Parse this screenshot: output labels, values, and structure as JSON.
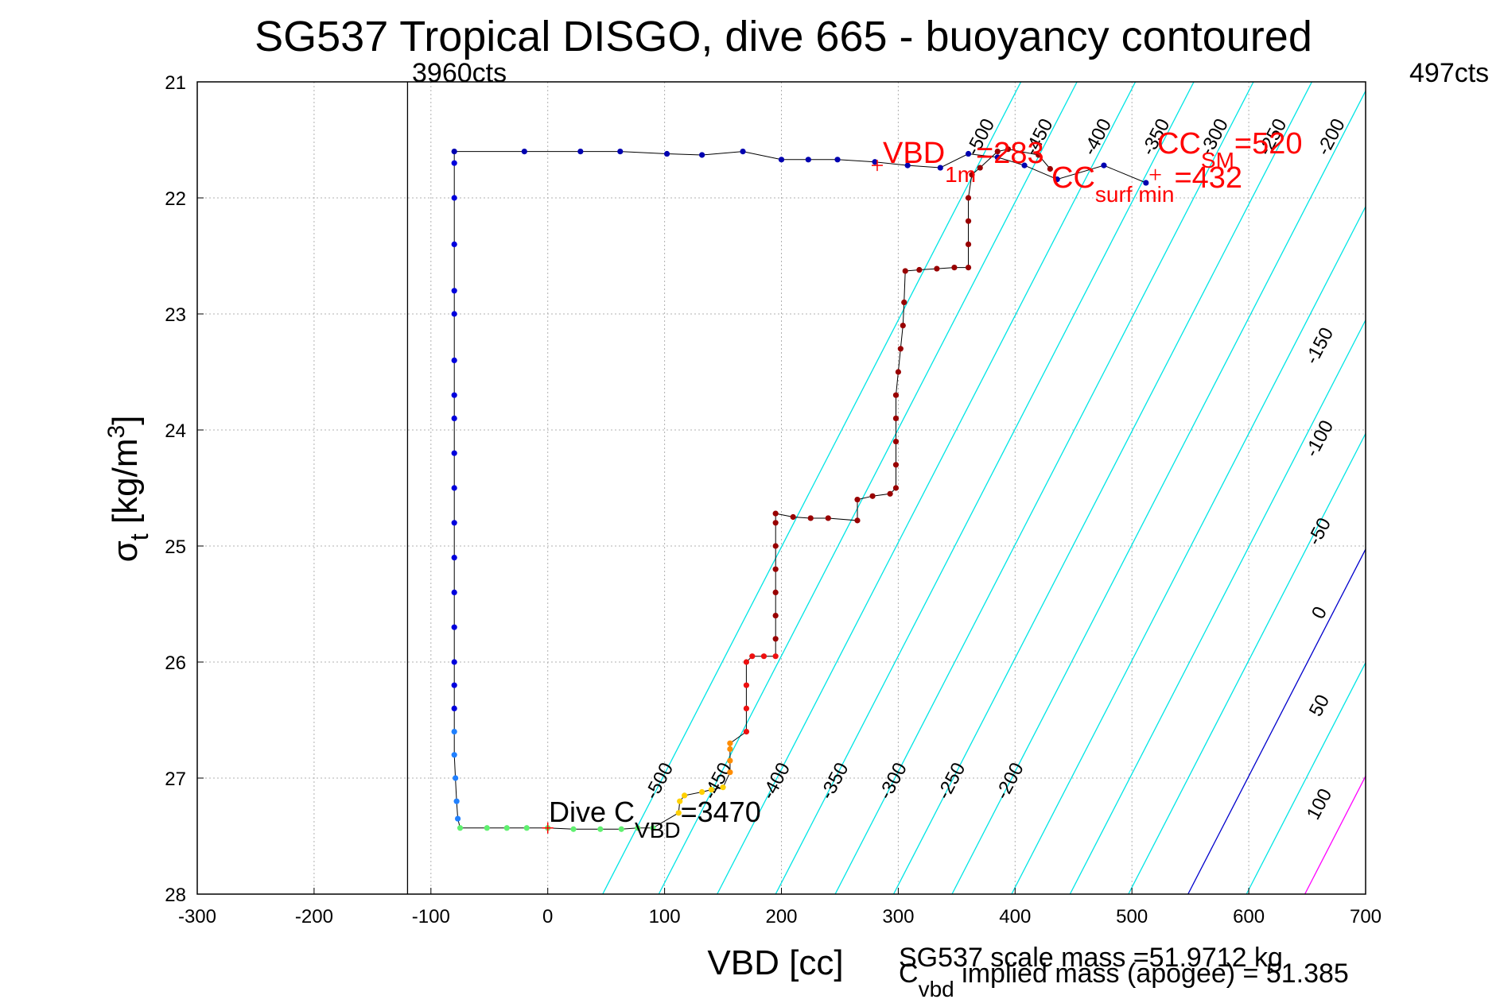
{
  "chart_data": {
    "type": "scatter",
    "title": "SG537 Tropical DISGO, dive 665 - buoyancy contoured",
    "xlabel": "VBD [cc]",
    "ylabel": {
      "base": "σ",
      "sub": "t",
      "rest": " [kg/m",
      "sup": "3",
      "end": "]"
    },
    "xlim": [
      -300,
      700
    ],
    "ylim": [
      21,
      28
    ],
    "y_reversed": true,
    "grid": true,
    "x_ticks": [
      -300,
      -200,
      -100,
      0,
      100,
      200,
      300,
      400,
      500,
      600,
      700
    ],
    "y_ticks": [
      21,
      22,
      23,
      24,
      25,
      26,
      27,
      28
    ],
    "counts_labels": [
      {
        "text": "3960cts",
        "x": -120
      },
      {
        "text": "497cts",
        "x": 700
      }
    ],
    "contours": [
      {
        "level": -500,
        "x_at_28": 47,
        "x_at_21": 405,
        "color": "#00e5e5",
        "label": "-500"
      },
      {
        "level": -450,
        "x_at_28": 95,
        "x_at_21": 453,
        "color": "#00e5e5",
        "label": "-450"
      },
      {
        "level": -400,
        "x_at_28": 145,
        "x_at_21": 503,
        "color": "#00e5e5",
        "label": "-400"
      },
      {
        "level": -350,
        "x_at_28": 195,
        "x_at_21": 553,
        "color": "#00e5e5",
        "label": "-350"
      },
      {
        "level": -300,
        "x_at_28": 246,
        "x_at_21": 604,
        "color": "#00e5e5",
        "label": "-300"
      },
      {
        "level": -250,
        "x_at_28": 296,
        "x_at_21": 654,
        "color": "#00e5e5",
        "label": "-250"
      },
      {
        "level": -200,
        "x_at_28": 346,
        "x_at_21": 704,
        "color": "#00e5e5",
        "label": "-200"
      },
      {
        "level": -150,
        "x_at_28": 397,
        "x_at_21": 755,
        "color": "#00e5e5",
        "label": "-150"
      },
      {
        "level": -100,
        "x_at_28": 447,
        "x_at_21": 805,
        "color": "#00e5e5",
        "label": "-100"
      },
      {
        "level": -50,
        "x_at_28": 497,
        "x_at_21": 855,
        "color": "#00e5e5",
        "label": "-50"
      },
      {
        "level": 0,
        "x_at_28": 548,
        "x_at_21": 906,
        "color": "#0000cc",
        "label": "0"
      },
      {
        "level": 50,
        "x_at_28": 598,
        "x_at_21": 956,
        "color": "#00e5e5",
        "label": "50"
      },
      {
        "level": 100,
        "x_at_28": 648,
        "x_at_21": 1006,
        "color": "#ff00ff",
        "label": "100"
      }
    ],
    "contour_labels": [
      {
        "text": "-500",
        "x": 100,
        "y": 27.05
      },
      {
        "text": "-450",
        "x": 150,
        "y": 27.05
      },
      {
        "text": "-400",
        "x": 200,
        "y": 27.05
      },
      {
        "text": "-350",
        "x": 250,
        "y": 27.05
      },
      {
        "text": "-300",
        "x": 300,
        "y": 27.05
      },
      {
        "text": "-250",
        "x": 350,
        "y": 27.05
      },
      {
        "text": "-200",
        "x": 400,
        "y": 27.05
      },
      {
        "text": "-500",
        "x": 375,
        "y": 21.5
      },
      {
        "text": "-450",
        "x": 425,
        "y": 21.5
      },
      {
        "text": "-400",
        "x": 475,
        "y": 21.5
      },
      {
        "text": "-350",
        "x": 525,
        "y": 21.5
      },
      {
        "text": "-300",
        "x": 575,
        "y": 21.5
      },
      {
        "text": "-250",
        "x": 625,
        "y": 21.5
      },
      {
        "text": "-200",
        "x": 675,
        "y": 21.5
      },
      {
        "text": "-150",
        "x": 665,
        "y": 23.3
      },
      {
        "text": "-100",
        "x": 665,
        "y": 24.1
      },
      {
        "text": "-50",
        "x": 665,
        "y": 24.9
      },
      {
        "text": "0",
        "x": 665,
        "y": 25.6
      },
      {
        "text": "50",
        "x": 665,
        "y": 26.4
      },
      {
        "text": "100",
        "x": 665,
        "y": 27.25
      }
    ],
    "series": [
      {
        "segment": "dive-top",
        "color": "#0000b0",
        "points": [
          [
            -80,
            21.6
          ],
          [
            -20,
            21.6
          ],
          [
            28,
            21.6
          ],
          [
            62,
            21.6
          ],
          [
            102,
            21.62
          ],
          [
            132,
            21.63
          ],
          [
            167,
            21.6
          ],
          [
            200,
            21.67
          ],
          [
            223,
            21.67
          ],
          [
            248,
            21.67
          ],
          [
            280,
            21.69
          ],
          [
            308,
            21.72
          ],
          [
            336,
            21.74
          ],
          [
            360,
            21.62
          ],
          [
            385,
            21.65
          ],
          [
            408,
            21.72
          ],
          [
            436,
            21.84
          ],
          [
            476,
            21.72
          ],
          [
            512,
            21.87
          ]
        ]
      },
      {
        "segment": "descent",
        "color": "#0000dd",
        "points": [
          [
            -80,
            21.7
          ],
          [
            -80,
            22.0
          ],
          [
            -80,
            22.4
          ],
          [
            -80,
            22.8
          ],
          [
            -80,
            23.0
          ],
          [
            -80,
            23.4
          ],
          [
            -80,
            23.7
          ],
          [
            -80,
            23.9
          ],
          [
            -80,
            24.2
          ],
          [
            -80,
            24.5
          ],
          [
            -80,
            24.8
          ],
          [
            -80,
            25.1
          ],
          [
            -80,
            25.4
          ],
          [
            -80,
            25.7
          ],
          [
            -80,
            26.0
          ],
          [
            -80,
            26.2
          ],
          [
            -80,
            26.4
          ]
        ]
      },
      {
        "segment": "descent-deep",
        "color": "#2080ff",
        "points": [
          [
            -80,
            26.6
          ],
          [
            -80,
            26.8
          ],
          [
            -79,
            27.0
          ],
          [
            -78,
            27.2
          ],
          [
            -77,
            27.35
          ]
        ]
      },
      {
        "segment": "bottom",
        "color": "#60f070",
        "points": [
          [
            -75,
            27.43
          ],
          [
            -52,
            27.43
          ],
          [
            -35,
            27.43
          ],
          [
            -18,
            27.43
          ],
          [
            0,
            27.43
          ],
          [
            22,
            27.44
          ],
          [
            45,
            27.44
          ],
          [
            63,
            27.44
          ],
          [
            77,
            27.43
          ],
          [
            90,
            27.43
          ]
        ]
      },
      {
        "segment": "climb-yellow",
        "color": "#ffd000",
        "points": [
          [
            112,
            27.3
          ],
          [
            113,
            27.2
          ],
          [
            117,
            27.15
          ],
          [
            132,
            27.12
          ],
          [
            140,
            27.1
          ],
          [
            150,
            27.08
          ]
        ]
      },
      {
        "segment": "climb-orange",
        "color": "#ff8c00",
        "points": [
          [
            156,
            26.95
          ],
          [
            156,
            26.85
          ],
          [
            156,
            26.75
          ],
          [
            156,
            26.7
          ]
        ]
      },
      {
        "segment": "climb-red",
        "color": "#ee1010",
        "points": [
          [
            170,
            26.6
          ],
          [
            170,
            26.4
          ],
          [
            170,
            26.2
          ],
          [
            170,
            26.0
          ],
          [
            175,
            25.95
          ],
          [
            185,
            25.95
          ],
          [
            195,
            25.95
          ]
        ]
      },
      {
        "segment": "ascent",
        "color": "#990000",
        "points": [
          [
            195,
            25.8
          ],
          [
            195,
            25.6
          ],
          [
            195,
            25.4
          ],
          [
            195,
            25.2
          ],
          [
            195,
            25.0
          ],
          [
            195,
            24.8
          ],
          [
            195,
            24.72
          ],
          [
            210,
            24.75
          ],
          [
            225,
            24.76
          ],
          [
            240,
            24.76
          ],
          [
            265,
            24.78
          ],
          [
            265,
            24.6
          ],
          [
            278,
            24.57
          ],
          [
            293,
            24.55
          ],
          [
            298,
            24.5
          ],
          [
            298,
            24.3
          ],
          [
            298,
            24.1
          ],
          [
            298,
            23.9
          ],
          [
            298,
            23.7
          ],
          [
            300,
            23.5
          ],
          [
            302,
            23.3
          ],
          [
            304,
            23.1
          ],
          [
            305,
            22.9
          ],
          [
            306,
            22.63
          ],
          [
            318,
            22.62
          ],
          [
            333,
            22.61
          ],
          [
            348,
            22.6
          ],
          [
            360,
            22.6
          ],
          [
            360,
            22.4
          ],
          [
            360,
            22.2
          ],
          [
            360,
            22.0
          ],
          [
            363,
            21.8
          ],
          [
            370,
            21.74
          ],
          [
            385,
            21.6
          ],
          [
            394,
            21.58
          ],
          [
            420,
            21.63
          ],
          [
            430,
            21.75
          ]
        ]
      }
    ],
    "markers": [
      {
        "x": 282,
        "y": 21.72,
        "color": "#ff0000"
      },
      {
        "x": 0,
        "y": 27.43,
        "color": "#ff0000"
      },
      {
        "x": 520,
        "y": 21.8,
        "color": "#ff0000"
      }
    ],
    "annotations": [
      {
        "main": "VBD",
        "sub": "1m",
        "value": "=283",
        "color": "#ff0000"
      },
      {
        "main": "CC",
        "sub": "surf min",
        "value": "=432",
        "color": "#ff0000"
      },
      {
        "main": "CC",
        "sub": "SM",
        "value": "=520",
        "color": "#ff0000"
      },
      {
        "main": "Dive C",
        "sub": "VBD",
        "value": "=3470",
        "color": "#000000"
      }
    ],
    "footer_scale_mass": "SG537 scale mass =51.9712 kg",
    "footer_implied_mass": {
      "main": "C",
      "sub": "vbd",
      "rest": " implied mass (apogee) = 51.385"
    }
  }
}
